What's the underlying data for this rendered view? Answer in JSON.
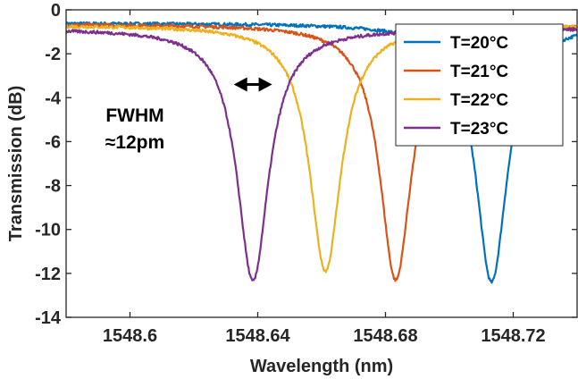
{
  "chart_data": {
    "type": "line",
    "xlabel": "Wavelength (nm)",
    "ylabel": "Transmission (dB)",
    "xlim": [
      1548.58,
      1548.74
    ],
    "ylim": [
      -14,
      0
    ],
    "x_ticks": [
      1548.6,
      1548.64,
      1548.68,
      1548.72
    ],
    "x_tick_labels": [
      "1548.6",
      "1548.64",
      "1548.68",
      "1548.72"
    ],
    "y_ticks": [
      0,
      -2,
      -4,
      -6,
      -8,
      -10,
      -12,
      -14
    ],
    "y_tick_labels": [
      "0",
      "-2",
      "-4",
      "-6",
      "-8",
      "-10",
      "-12",
      "-14"
    ],
    "grid": false,
    "legend_position": "top-right",
    "series": [
      {
        "name": "T=20°C",
        "color": "#0072BD",
        "baseline": -0.6,
        "dip_center": 1548.7132,
        "dip_depth": -12.4,
        "fwhm": 0.012
      },
      {
        "name": "T=21°C",
        "color": "#D95319",
        "baseline": -0.65,
        "dip_center": 1548.6832,
        "dip_depth": -12.3,
        "fwhm": 0.012
      },
      {
        "name": "T=22°C",
        "color": "#EDB120",
        "baseline": -0.7,
        "dip_center": 1548.6612,
        "dip_depth": -11.9,
        "fwhm": 0.012
      },
      {
        "name": "T=23°C",
        "color": "#7E2F8E",
        "baseline": -0.85,
        "dip_center": 1548.6385,
        "dip_depth": -12.35,
        "fwhm": 0.012
      }
    ],
    "annotations": [
      {
        "text_line1": "FWHM",
        "text_line2": "≈12pm",
        "arrow_from": 1548.6325,
        "arrow_to": 1548.6445,
        "arrow_y": -3.4
      }
    ]
  }
}
